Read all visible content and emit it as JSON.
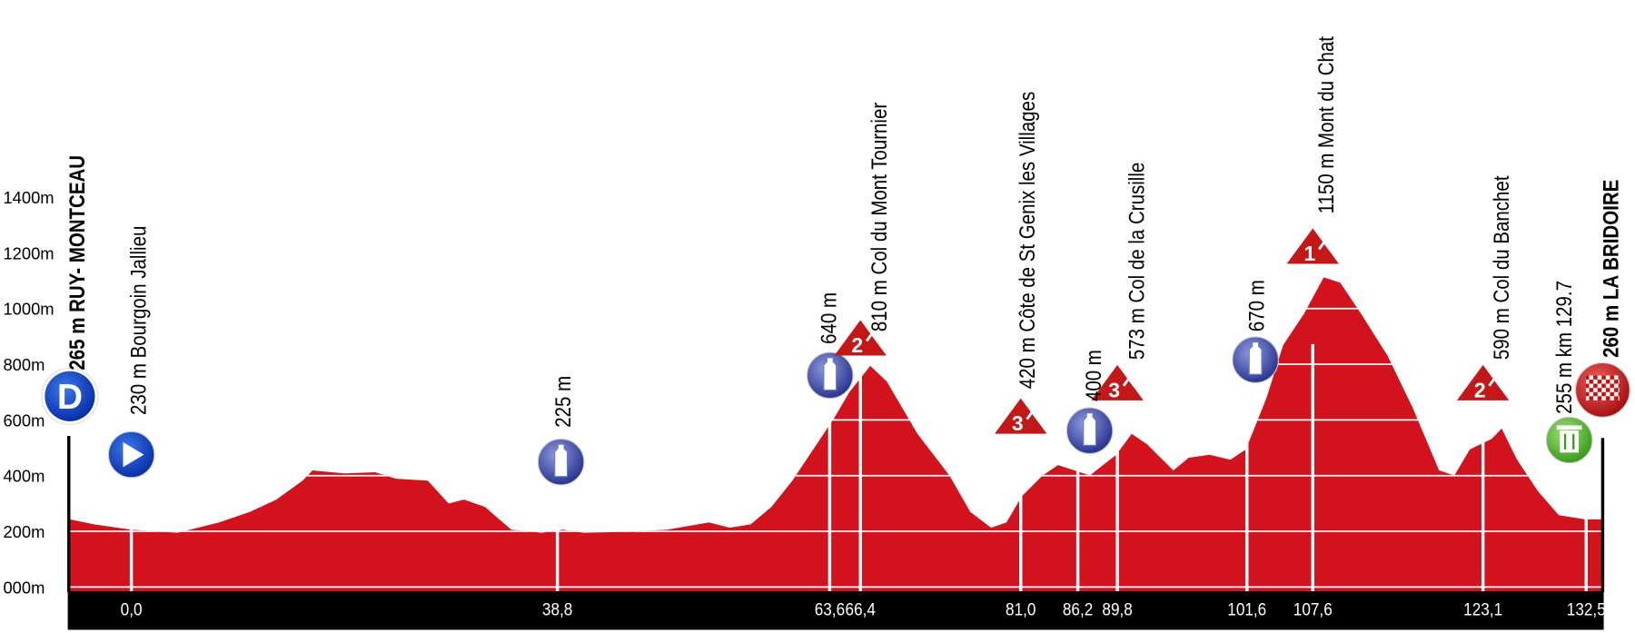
{
  "chart_data": {
    "type": "area",
    "color": "#d2121c",
    "start_marker": "D",
    "x": [
      -5.6,
      -3.4,
      0,
      4.2,
      8.0,
      10.8,
      13.2,
      15.6,
      16.5,
      19.4,
      22.2,
      24.1,
      27.0,
      28.9,
      30.3,
      32.2,
      34.6,
      37.4,
      39.3,
      41.2,
      45.0,
      48.8,
      52.6,
      54.5,
      56.4,
      58.3,
      60.2,
      62.1,
      64.0,
      65.4,
      67.3,
      68.8,
      71.6,
      74.5,
      76.4,
      78.3,
      79.7,
      81.1,
      83.0,
      84.4,
      85.9,
      87.3,
      89.7,
      91.1,
      92.5,
      94.9,
      96.3,
      98.2,
      100.1,
      101.5,
      103.4,
      104.9,
      106.8,
      108.6,
      110.1,
      112.0,
      114.4,
      116.7,
      119.1,
      120.5,
      121.9,
      123.9,
      124.8,
      126.2,
      128.1,
      130.0,
      132.4,
      134.0
    ],
    "values": [
      243,
      225,
      206,
      195,
      232,
      270,
      314,
      382,
      419,
      408,
      412,
      389,
      382,
      300,
      314,
      288,
      206,
      195,
      206,
      195,
      198,
      206,
      232,
      213,
      225,
      288,
      382,
      494,
      606,
      700,
      794,
      738,
      550,
      401,
      270,
      213,
      232,
      326,
      401,
      438,
      419,
      401,
      475,
      550,
      513,
      419,
      464,
      475,
      457,
      494,
      681,
      869,
      981,
      1112,
      1093,
      981,
      831,
      644,
      419,
      401,
      494,
      532,
      569,
      457,
      344,
      258,
      243,
      243
    ],
    "xlim": [
      -5.6,
      134.0
    ],
    "ylim": [
      0,
      1400
    ],
    "yticks": [
      {
        "value": 0,
        "label": "000m"
      },
      {
        "value": 200,
        "label": "200m"
      },
      {
        "value": 400,
        "label": "400m"
      },
      {
        "value": 600,
        "label": "600m"
      },
      {
        "value": 800,
        "label": "800m"
      },
      {
        "value": 1000,
        "label": "1000m"
      },
      {
        "value": 1200,
        "label": "1200m"
      },
      {
        "value": 1400,
        "label": "1400m"
      }
    ],
    "xticks": [
      {
        "value": 0,
        "label": "0,0"
      },
      {
        "value": 38.8,
        "label": "38,8"
      },
      {
        "value": 63.6,
        "label": "63,6"
      },
      {
        "value": 66.4,
        "label": "66,4"
      },
      {
        "value": 81.0,
        "label": "81,0"
      },
      {
        "value": 86.2,
        "label": "86,2"
      },
      {
        "value": 89.8,
        "label": "89,8"
      },
      {
        "value": 101.6,
        "label": "101,6"
      },
      {
        "value": 107.6,
        "label": "107,6"
      },
      {
        "value": 123.1,
        "label": "123,1"
      },
      {
        "value": 132.5,
        "label": "132,5"
      }
    ],
    "annotations": [
      {
        "x": -5.6,
        "text": "265 m  RUY- MONTCEAU"
      },
      {
        "x": 0,
        "text": "230 m Bourgoin Jallieu"
      },
      {
        "x": 38.8,
        "text": "225 m"
      },
      {
        "x": 63.6,
        "text": "640 m"
      },
      {
        "x": 66.4,
        "text": "810 m  Col du Mont Tournier"
      },
      {
        "x": 81.0,
        "text": "420 m  Côte de St Genix les Villages"
      },
      {
        "x": 86.2,
        "text": "400 m"
      },
      {
        "x": 89.8,
        "text": "573 m  Col de la Crusille"
      },
      {
        "x": 101.6,
        "text": "670 m"
      },
      {
        "x": 107.6,
        "text": "1150 m Mont du Chat"
      },
      {
        "x": 123.1,
        "text": "590 m  Col du Banchet"
      },
      {
        "x": 129.7,
        "text": "255 m  km 129.7"
      },
      {
        "x": 134.0,
        "text": "260 m  LA BRIDOIRE"
      }
    ],
    "climbs": [
      {
        "x": 66.4,
        "category": 2
      },
      {
        "x": 81.0,
        "category": 3
      },
      {
        "x": 89.8,
        "category": 3
      },
      {
        "x": 107.6,
        "category": 1
      },
      {
        "x": 123.1,
        "category": 2
      }
    ]
  }
}
